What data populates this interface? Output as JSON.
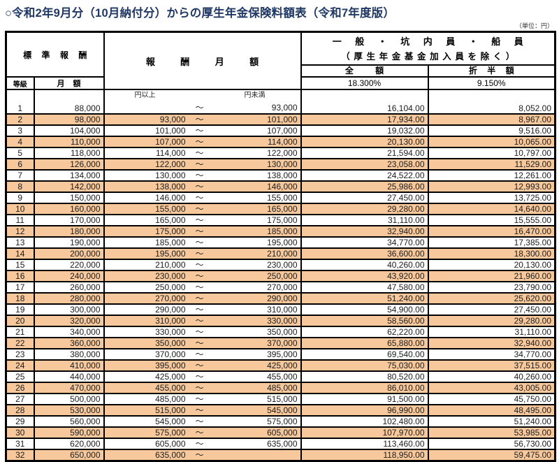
{
  "title": "○令和2年9月分（10月納付分）からの厚生年金保険料額表（令和7年度版）",
  "unit_note": "（単位：円）",
  "colors": {
    "title_navy": "#1F3864",
    "highlight_row": "#F6C89C",
    "border": "#000000"
  },
  "table": {
    "header": {
      "standard_remuneration": "標準報酬",
      "grade": "等級",
      "monthly": "月額",
      "remuneration_monthly": "報酬月額",
      "category_line1": "一般・坑内員・船員",
      "category_line2": "（厚生年金基金加入員を除く）",
      "full_label": "全額",
      "half_label": "折半額",
      "full_rate": "18.300%",
      "half_rate": "9.150%",
      "lower_unit_label": "円以上",
      "upper_unit_label": "円未満",
      "tilde": "～"
    },
    "columns": [
      "等級",
      "月額",
      "円以上",
      "円未満",
      "全額",
      "折半額"
    ],
    "rows": [
      [
        "1",
        "88,000",
        "",
        "93,000",
        "16,104.00",
        "8,052.00"
      ],
      [
        "2",
        "98,000",
        "93,000",
        "101,000",
        "17,934.00",
        "8,967.00"
      ],
      [
        "3",
        "104,000",
        "101,000",
        "107,000",
        "19,032.00",
        "9,516.00"
      ],
      [
        "4",
        "110,000",
        "107,000",
        "114,000",
        "20,130.00",
        "10,065.00"
      ],
      [
        "5",
        "118,000",
        "114,000",
        "122,000",
        "21,594.00",
        "10,797.00"
      ],
      [
        "6",
        "126,000",
        "122,000",
        "130,000",
        "23,058.00",
        "11,529.00"
      ],
      [
        "7",
        "134,000",
        "130,000",
        "138,000",
        "24,522.00",
        "12,261.00"
      ],
      [
        "8",
        "142,000",
        "138,000",
        "146,000",
        "25,986.00",
        "12,993.00"
      ],
      [
        "9",
        "150,000",
        "146,000",
        "155,000",
        "27,450.00",
        "13,725.00"
      ],
      [
        "10",
        "160,000",
        "155,000",
        "165,000",
        "29,280.00",
        "14,640.00"
      ],
      [
        "11",
        "170,000",
        "165,000",
        "175,000",
        "31,110.00",
        "15,555.00"
      ],
      [
        "12",
        "180,000",
        "175,000",
        "185,000",
        "32,940.00",
        "16,470.00"
      ],
      [
        "13",
        "190,000",
        "185,000",
        "195,000",
        "34,770.00",
        "17,385.00"
      ],
      [
        "14",
        "200,000",
        "195,000",
        "210,000",
        "36,600.00",
        "18,300.00"
      ],
      [
        "15",
        "220,000",
        "210,000",
        "230,000",
        "40,260.00",
        "20,130.00"
      ],
      [
        "16",
        "240,000",
        "230,000",
        "250,000",
        "43,920.00",
        "21,960.00"
      ],
      [
        "17",
        "260,000",
        "250,000",
        "270,000",
        "47,580.00",
        "23,790.00"
      ],
      [
        "18",
        "280,000",
        "270,000",
        "290,000",
        "51,240.00",
        "25,620.00"
      ],
      [
        "19",
        "300,000",
        "290,000",
        "310,000",
        "54,900.00",
        "27,450.00"
      ],
      [
        "20",
        "320,000",
        "310,000",
        "330,000",
        "58,560.00",
        "29,280.00"
      ],
      [
        "21",
        "340,000",
        "330,000",
        "350,000",
        "62,220.00",
        "31,110.00"
      ],
      [
        "22",
        "360,000",
        "350,000",
        "370,000",
        "65,880.00",
        "32,940.00"
      ],
      [
        "23",
        "380,000",
        "370,000",
        "395,000",
        "69,540.00",
        "34,770.00"
      ],
      [
        "24",
        "410,000",
        "395,000",
        "425,000",
        "75,030.00",
        "37,515.00"
      ],
      [
        "25",
        "440,000",
        "425,000",
        "455,000",
        "80,520.00",
        "40,260.00"
      ],
      [
        "26",
        "470,000",
        "455,000",
        "485,000",
        "86,010.00",
        "43,005.00"
      ],
      [
        "27",
        "500,000",
        "485,000",
        "515,000",
        "91,500.00",
        "45,750.00"
      ],
      [
        "28",
        "530,000",
        "515,000",
        "545,000",
        "96,990.00",
        "48,495.00"
      ],
      [
        "29",
        "560,000",
        "545,000",
        "575,000",
        "102,480.00",
        "51,240.00"
      ],
      [
        "30",
        "590,000",
        "575,000",
        "605,000",
        "107,970.00",
        "53,985.00"
      ],
      [
        "31",
        "620,000",
        "605,000",
        "635,000",
        "113,460.00",
        "56,730.00"
      ],
      [
        "32",
        "650,000",
        "635,000",
        "",
        "118,950.00",
        "59,475.00"
      ]
    ]
  }
}
